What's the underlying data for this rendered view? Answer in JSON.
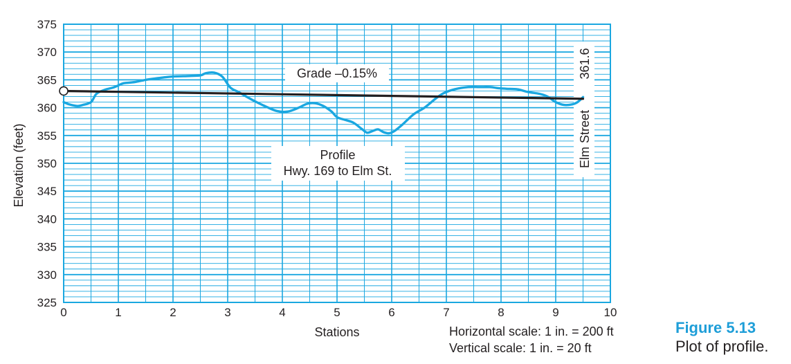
{
  "chart_data": {
    "type": "line",
    "title": "",
    "xlabel": "Stations",
    "ylabel": "Elevation (feet)",
    "xlim": [
      0,
      10
    ],
    "ylim": [
      325,
      375
    ],
    "xticks": [
      0,
      1,
      2,
      3,
      4,
      5,
      6,
      7,
      8,
      9,
      10
    ],
    "yticks": [
      325,
      330,
      335,
      340,
      345,
      350,
      355,
      360,
      365,
      370,
      375
    ],
    "grid": true,
    "series": [
      {
        "role": "ground-profile",
        "color": "#1aa7e0",
        "x": [
          0,
          0.1,
          0.25,
          0.35,
          0.5,
          0.6,
          0.75,
          0.9,
          1.0,
          1.1,
          1.3,
          1.5,
          1.8,
          2.0,
          2.3,
          2.5,
          2.6,
          2.75,
          2.9,
          3.05,
          3.2,
          3.45,
          3.7,
          3.9,
          4.1,
          4.3,
          4.45,
          4.6,
          4.75,
          4.9,
          5.0,
          5.15,
          5.3,
          5.45,
          5.55,
          5.65,
          5.75,
          5.85,
          5.95,
          6.05,
          6.2,
          6.4,
          6.6,
          6.8,
          6.95,
          7.15,
          7.4,
          7.6,
          7.8,
          7.95,
          8.1,
          8.3,
          8.5,
          8.7,
          8.85,
          9.0,
          9.15,
          9.3,
          9.4,
          9.5
        ],
        "y": [
          361.0,
          360.6,
          360.3,
          360.5,
          361.0,
          362.5,
          363.2,
          363.6,
          364.0,
          364.4,
          364.6,
          365.0,
          365.4,
          365.6,
          365.7,
          365.8,
          366.2,
          366.3,
          365.6,
          363.6,
          362.8,
          361.4,
          360.2,
          359.4,
          359.3,
          360.0,
          360.7,
          360.8,
          360.3,
          359.3,
          358.3,
          357.8,
          357.3,
          356.2,
          355.5,
          355.8,
          356.1,
          355.6,
          355.4,
          355.8,
          357.0,
          358.8,
          360.0,
          361.6,
          362.6,
          363.3,
          363.7,
          363.7,
          363.7,
          363.5,
          363.4,
          363.3,
          362.8,
          362.5,
          362.0,
          361.0,
          360.5,
          360.6,
          361.0,
          361.9
        ]
      },
      {
        "role": "grade-line",
        "color": "#231f20",
        "x": [
          0,
          9.5
        ],
        "y": [
          363.0,
          361.6
        ]
      }
    ],
    "annotations": {
      "grade": "Grade –0.15%",
      "profile_line1": "Profile",
      "profile_line2": "Hwy. 169 to Elm St.",
      "end_elevation": "361.6",
      "end_street": "Elm Street"
    }
  },
  "scale_notes": {
    "horizontal": "Horizontal scale:  1 in. = 200 ft",
    "vertical": "Vertical scale:  1 in. = 20 ft"
  },
  "figure": {
    "number": "Figure 5.13",
    "caption": "Plot of profile."
  }
}
